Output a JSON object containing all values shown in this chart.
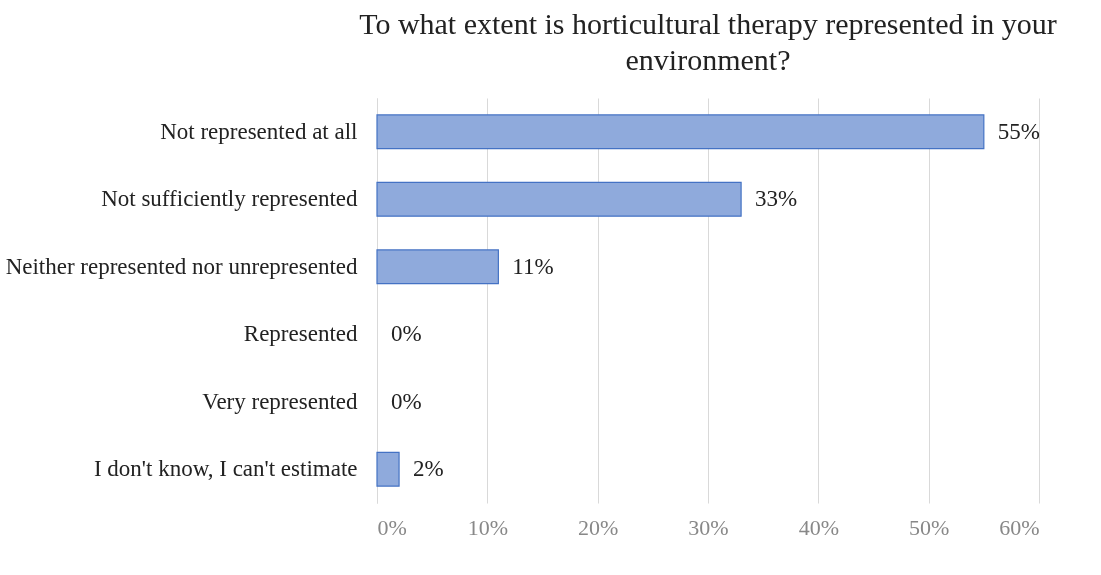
{
  "chart_data": {
    "type": "bar",
    "orientation": "horizontal",
    "title": "To what extent is horticultural therapy represented in your environment?",
    "categories": [
      "Not represented at all",
      "Not sufficiently represented",
      "Neither represented nor unrepresented",
      "Represented",
      "Very represented",
      "I don't know, I can't estimate"
    ],
    "values": [
      55,
      33,
      11,
      0,
      0,
      2
    ],
    "value_labels": [
      "55%",
      "33%",
      "11%",
      "0%",
      "0%",
      "2%"
    ],
    "color": "#8faadc",
    "xlim": [
      0,
      60
    ],
    "xticks": [
      {
        "value": 0,
        "label": "0%"
      },
      {
        "value": 10,
        "label": "10%"
      },
      {
        "value": 20,
        "label": "20%"
      },
      {
        "value": 30,
        "label": "30%"
      },
      {
        "value": 40,
        "label": "40%"
      },
      {
        "value": 50,
        "label": "50%"
      },
      {
        "value": 60,
        "label": "60%"
      }
    ],
    "grid": "x"
  }
}
